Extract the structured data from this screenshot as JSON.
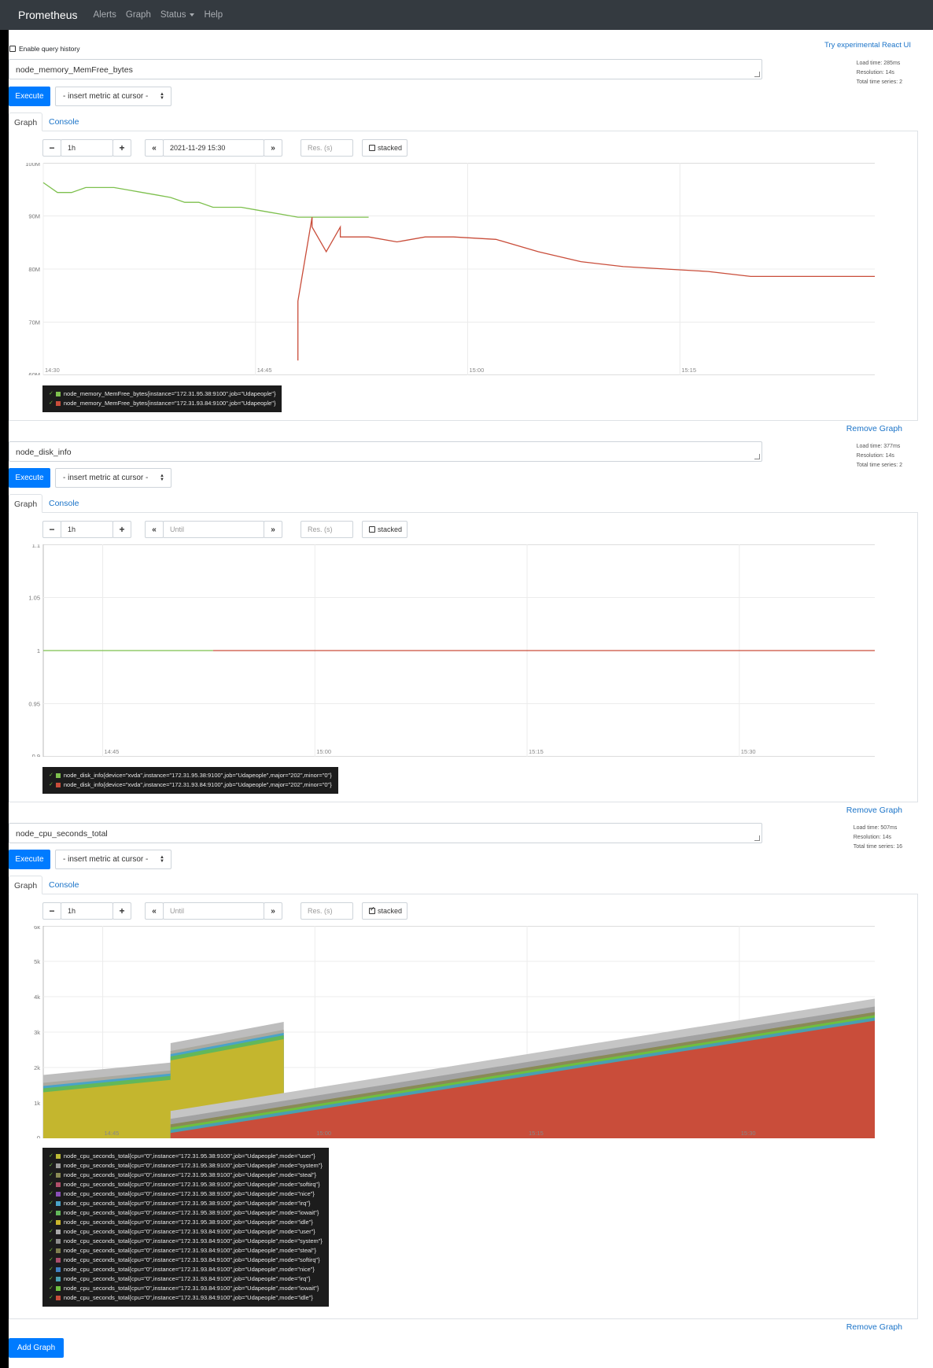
{
  "navbar": {
    "brand": "Prometheus",
    "links": [
      "Alerts",
      "Graph",
      "Status",
      "Help"
    ]
  },
  "history_label": "Enable query history",
  "react_link": "Try experimental React UI",
  "add_graph_label": "Add Graph",
  "colors": {
    "primary": "#007bff",
    "navbar": "#343a40",
    "link": "#1a73c8",
    "series_green": "#7ec04e",
    "series_red": "#c94d3a",
    "series_yellow": "#c9b52c"
  },
  "panels": [
    {
      "expression": "node_memory_MemFree_bytes",
      "stats": [
        "Load time: 285ms",
        "Resolution: 14s",
        "Total time series: 2"
      ],
      "execute_label": "Execute",
      "metric_select": "- insert metric at cursor -",
      "tabs": [
        "Graph",
        "Console"
      ],
      "range": "1h",
      "end_time": "2021-11-29 15:30",
      "end_time_placeholder": "Until",
      "resolution_placeholder": "Res. (s)",
      "stacked_label": "stacked",
      "stacked": false,
      "remove_label": "Remove Graph",
      "chart_data": {
        "type": "line",
        "y_ticks": [
          "100M",
          "90M",
          "80M",
          "70M",
          "60M"
        ],
        "ylim": [
          60000000,
          103000000
        ],
        "x_ticks": [
          "14:30",
          "14:45",
          "15:00",
          "15:15"
        ],
        "xlim": [
          "14:30",
          "15:30"
        ],
        "series": [
          {
            "name": "node_memory_MemFree_bytes{instance=\"172.31.95.38:9100\",job=\"Udapeople\"}",
            "color": "#7ec04e",
            "x": [
              "14:30",
              "14:31",
              "14:32",
              "14:33",
              "14:34",
              "14:35",
              "14:36",
              "14:37",
              "14:38",
              "14:39",
              "14:40",
              "14:41",
              "14:42",
              "14:43",
              "14:44",
              "14:45",
              "14:46",
              "14:47",
              "14:48",
              "14:49",
              "14:50",
              "14:51",
              "14:52",
              "14:53"
            ],
            "y": [
              99000000,
              97000000,
              97000000,
              98000000,
              98000000,
              98000000,
              97500000,
              97000000,
              96500000,
              96000000,
              95000000,
              95000000,
              94000000,
              94000000,
              94000000,
              93500000,
              93000000,
              92500000,
              92000000,
              92000000,
              92000000,
              92000000,
              92000000,
              92000000
            ]
          },
          {
            "name": "node_memory_MemFree_bytes{instance=\"172.31.93.84:9100\",job=\"Udapeople\"}",
            "color": "#c94d3a",
            "x": [
              "14:48",
              "14:48",
              "14:49",
              "14:49",
              "14:50",
              "14:51",
              "14:51",
              "14:52",
              "14:53",
              "14:55",
              "14:57",
              "14:59",
              "15:02",
              "15:05",
              "15:08",
              "15:11",
              "15:14",
              "15:17",
              "15:20",
              "15:25",
              "15:30"
            ],
            "y": [
              63000000,
              75000000,
              92000000,
              90000000,
              85000000,
              90000000,
              88000000,
              88000000,
              88000000,
              87000000,
              88000000,
              88000000,
              87500000,
              85000000,
              83000000,
              82000000,
              81500000,
              81000000,
              80000000,
              80000000,
              80000000
            ]
          }
        ]
      }
    },
    {
      "expression": "node_disk_info",
      "stats": [
        "Load time: 377ms",
        "Resolution: 14s",
        "Total time series: 2"
      ],
      "execute_label": "Execute",
      "metric_select": "- insert metric at cursor -",
      "tabs": [
        "Graph",
        "Console"
      ],
      "range": "1h",
      "end_time": "",
      "end_time_placeholder": "Until",
      "resolution_placeholder": "Res. (s)",
      "stacked_label": "stacked",
      "stacked": false,
      "remove_label": "Remove Graph",
      "chart_data": {
        "type": "line",
        "y_ticks": [
          "1.1",
          "1.05",
          "1",
          "0.95",
          "0.9"
        ],
        "ylim": [
          0.9,
          1.1
        ],
        "x_ticks": [
          "14:45",
          "15:00",
          "15:15",
          "15:30"
        ],
        "series": [
          {
            "name": "node_disk_info{device=\"xvda\",instance=\"172.31.95.38:9100\",job=\"Udapeople\",major=\"202\",minor=\"0\"}",
            "color": "#7ec04e",
            "x": [
              0,
              0.2
            ],
            "y": [
              1,
              1
            ]
          },
          {
            "name": "node_disk_info{device=\"xvda\",instance=\"172.31.93.84:9100\",job=\"Udapeople\",major=\"202\",minor=\"0\"}",
            "color": "#c94d3a",
            "x": [
              0.2,
              1
            ],
            "y": [
              1,
              1
            ]
          }
        ]
      }
    },
    {
      "expression": "node_cpu_seconds_total",
      "stats": [
        "Load time: 507ms",
        "Resolution: 14s",
        "Total time series: 16"
      ],
      "execute_label": "Execute",
      "metric_select": "- insert metric at cursor -",
      "tabs": [
        "Graph",
        "Console"
      ],
      "range": "1h",
      "end_time": "",
      "end_time_placeholder": "Until",
      "resolution_placeholder": "Res. (s)",
      "stacked_label": "stacked",
      "stacked": true,
      "remove_label": "Remove Graph",
      "chart_data": {
        "type": "area",
        "y_ticks": [
          "6k",
          "5k",
          "4k",
          "3k",
          "2k",
          "1k",
          "0"
        ],
        "ylim": [
          0,
          6000
        ],
        "x_ticks": [
          "14:45",
          "15:00",
          "15:15",
          "15:30"
        ],
        "series": [
          {
            "name": "node_cpu_seconds_total{cpu=\"0\",instance=\"172.31.95.38:9100\",job=\"Udapeople\",mode=\"user\"}",
            "color": "#bdbb36"
          },
          {
            "name": "node_cpu_seconds_total{cpu=\"0\",instance=\"172.31.95.38:9100\",job=\"Udapeople\",mode=\"system\"}",
            "color": "#9c9c9c"
          },
          {
            "name": "node_cpu_seconds_total{cpu=\"0\",instance=\"172.31.95.38:9100\",job=\"Udapeople\",mode=\"steal\"}",
            "color": "#8a8a55"
          },
          {
            "name": "node_cpu_seconds_total{cpu=\"0\",instance=\"172.31.95.38:9100\",job=\"Udapeople\",mode=\"softirq\"}",
            "color": "#b0506a"
          },
          {
            "name": "node_cpu_seconds_total{cpu=\"0\",instance=\"172.31.95.38:9100\",job=\"Udapeople\",mode=\"nice\"}",
            "color": "#8a4fb8"
          },
          {
            "name": "node_cpu_seconds_total{cpu=\"0\",instance=\"172.31.95.38:9100\",job=\"Udapeople\",mode=\"irq\"}",
            "color": "#4aa3c8"
          },
          {
            "name": "node_cpu_seconds_total{cpu=\"0\",instance=\"172.31.95.38:9100\",job=\"Udapeople\",mode=\"iowait\"}",
            "color": "#62b85a"
          },
          {
            "name": "node_cpu_seconds_total{cpu=\"0\",instance=\"172.31.95.38:9100\",job=\"Udapeople\",mode=\"idle\"}",
            "color": "#c9b52c",
            "x": [
              "14:30",
              "14:39",
              "14:39",
              "14:47"
            ],
            "y": [
              1300,
              1650,
              2200,
              2800
            ]
          },
          {
            "name": "node_cpu_seconds_total{cpu=\"0\",instance=\"172.31.93.84:9100\",job=\"Udapeople\",mode=\"user\"}",
            "color": "#a8a8a8"
          },
          {
            "name": "node_cpu_seconds_total{cpu=\"0\",instance=\"172.31.93.84:9100\",job=\"Udapeople\",mode=\"system\"}",
            "color": "#8d8d8d"
          },
          {
            "name": "node_cpu_seconds_total{cpu=\"0\",instance=\"172.31.93.84:9100\",job=\"Udapeople\",mode=\"steal\"}",
            "color": "#7f7f4f"
          },
          {
            "name": "node_cpu_seconds_total{cpu=\"0\",instance=\"172.31.93.84:9100\",job=\"Udapeople\",mode=\"softirq\"}",
            "color": "#a84d6b"
          },
          {
            "name": "node_cpu_seconds_total{cpu=\"0\",instance=\"172.31.93.84:9100\",job=\"Udapeople\",mode=\"nice\"}",
            "color": "#3f7fc0"
          },
          {
            "name": "node_cpu_seconds_total{cpu=\"0\",instance=\"172.31.93.84:9100\",job=\"Udapeople\",mode=\"irq\"}",
            "color": "#4a9fb0"
          },
          {
            "name": "node_cpu_seconds_total{cpu=\"0\",instance=\"172.31.93.84:9100\",job=\"Udapeople\",mode=\"iowait\"}",
            "color": "#6fbf3f"
          },
          {
            "name": "node_cpu_seconds_total{cpu=\"0\",instance=\"172.31.93.84:9100\",job=\"Udapeople\",mode=\"idle\"}",
            "color": "#c94d3a",
            "x": [
              "14:39",
              "15:30"
            ],
            "y": [
              150,
              3400
            ]
          }
        ]
      }
    }
  ]
}
